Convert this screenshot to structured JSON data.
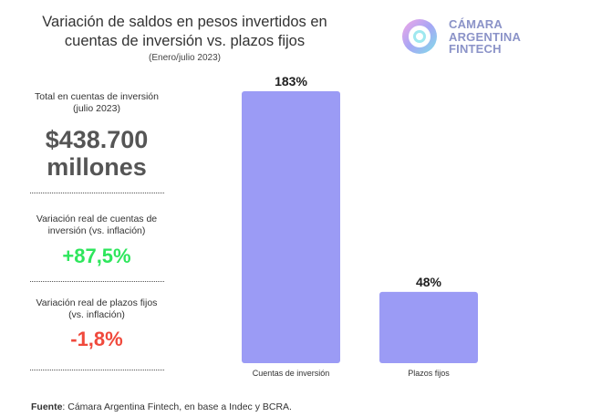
{
  "header": {
    "title_line1": "Variación de saldos en pesos invertidos en",
    "title_line2": "cuentas de inversión vs. plazos fijos",
    "subtitle": "(Enero/julio 2023)"
  },
  "logo": {
    "line1": "CÁMARA",
    "line2": "ARGENTINA",
    "line3": "FINTECH"
  },
  "stats": {
    "total_label_line1": "Total en cuentas de inversión",
    "total_label_line2": "(julio 2023)",
    "total_value_line1": "$438.700",
    "total_value_line2": "millones",
    "cuentas_label_line1": "Variación real de cuentas de",
    "cuentas_label_line2": "inversión (vs. inflación)",
    "cuentas_value": "+87,5%",
    "plazos_label_line1": "Variación real de plazos fijos",
    "plazos_label_line2": "(vs. inflación)",
    "plazos_value": "-1,8%"
  },
  "colors": {
    "bar": "#9b9bf5",
    "positive": "#2ee65c",
    "negative": "#f0493c",
    "logo": "#8b93c8"
  },
  "source": {
    "label": "Fuente",
    "text": ": Cámara Argentina Fintech, en base a Indec y BCRA."
  },
  "chart_data": {
    "type": "bar",
    "categories": [
      "Cuentas de inversión",
      "Plazos fijos"
    ],
    "values": [
      183,
      48
    ],
    "data_labels": [
      "183%",
      "48%"
    ],
    "unit": "%",
    "title": "",
    "xlabel": "",
    "ylabel": "",
    "ylim": [
      0,
      183
    ],
    "grid": false,
    "legend": "none"
  }
}
